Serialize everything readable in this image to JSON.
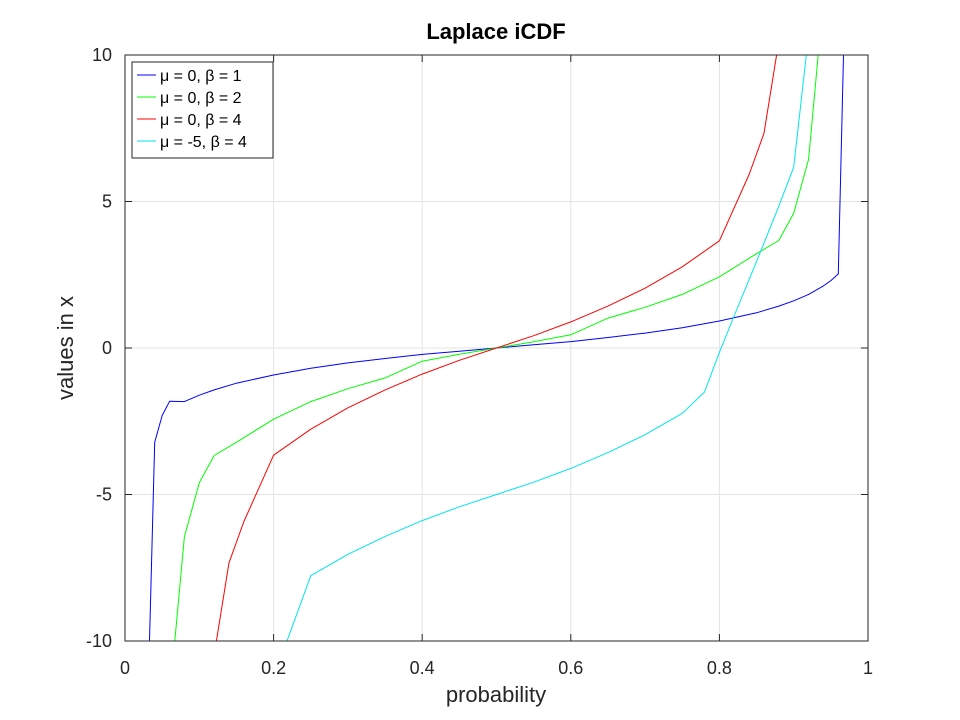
{
  "chart_data": {
    "type": "line",
    "title": "Laplace iCDF",
    "xlabel": "probability",
    "ylabel": "values in x",
    "xlim": [
      0,
      1
    ],
    "ylim": [
      -10,
      10
    ],
    "xticks": [
      0,
      0.2,
      0.4,
      0.6,
      0.8,
      1
    ],
    "yticks": [
      -10,
      -5,
      0,
      5,
      10
    ],
    "xtick_labels": [
      "0",
      "0.2",
      "0.4",
      "0.6",
      "0.8",
      "1"
    ],
    "ytick_labels": [
      "-10",
      "-5",
      "0",
      "5",
      "10"
    ],
    "grid": true,
    "legend_position": "top-left",
    "series": [
      {
        "name": "μ = 0, β = 1",
        "color": "#0000ff",
        "x": [
          0.033,
          0.04,
          0.05,
          0.06,
          0.08,
          0.1,
          0.12,
          0.15,
          0.2,
          0.25,
          0.3,
          0.35,
          0.4,
          0.45,
          0.5,
          0.55,
          0.6,
          0.65,
          0.7,
          0.75,
          0.8,
          0.85,
          0.88,
          0.9,
          0.92,
          0.94,
          0.95,
          0.96,
          0.967
        ],
        "y": [
          -10,
          -3.22,
          -2.3,
          -1.82,
          -1.83,
          -1.61,
          -1.43,
          -1.2,
          -0.92,
          -0.69,
          -0.51,
          -0.36,
          -0.22,
          -0.11,
          0,
          0.11,
          0.22,
          0.36,
          0.51,
          0.69,
          0.92,
          1.2,
          1.43,
          1.61,
          1.83,
          2.12,
          2.3,
          2.53,
          10
        ]
      },
      {
        "name": "μ = 0, β = 2",
        "color": "#00ff00",
        "x": [
          0.067,
          0.08,
          0.1,
          0.12,
          0.15,
          0.2,
          0.25,
          0.3,
          0.35,
          0.4,
          0.45,
          0.5,
          0.55,
          0.6,
          0.65,
          0.7,
          0.75,
          0.8,
          0.85,
          0.88,
          0.9,
          0.92,
          0.933
        ],
        "y": [
          -10,
          -6.44,
          -4.6,
          -3.67,
          -3.22,
          -2.43,
          -1.83,
          -1.39,
          -1.02,
          -0.45,
          -0.21,
          0,
          0.21,
          0.45,
          1.02,
          1.39,
          1.83,
          2.43,
          3.22,
          3.67,
          4.6,
          6.44,
          10
        ]
      },
      {
        "name": "μ = 0, β = 4",
        "color": "#ff0000",
        "x": [
          0.123,
          0.14,
          0.16,
          0.2,
          0.25,
          0.3,
          0.35,
          0.4,
          0.45,
          0.5,
          0.55,
          0.6,
          0.65,
          0.7,
          0.75,
          0.8,
          0.84,
          0.86,
          0.877
        ],
        "y": [
          -10,
          -7.33,
          -5.92,
          -3.66,
          -2.77,
          -2.04,
          -1.43,
          -0.89,
          -0.42,
          0,
          0.42,
          0.89,
          1.43,
          2.04,
          2.77,
          3.66,
          5.92,
          7.33,
          10
        ]
      },
      {
        "name": "μ = -5, β = 4",
        "color": "#00e5ee",
        "x": [
          0.218,
          0.25,
          0.3,
          0.35,
          0.4,
          0.45,
          0.5,
          0.55,
          0.6,
          0.65,
          0.7,
          0.75,
          0.78,
          0.8,
          0.82,
          0.84,
          0.86,
          0.88,
          0.9,
          0.917
        ],
        "y": [
          -10,
          -7.77,
          -7.04,
          -6.43,
          -5.89,
          -5.42,
          -5,
          -4.58,
          -4.11,
          -3.57,
          -2.96,
          -2.23,
          -1.5,
          -0.15,
          1.11,
          2.33,
          3.58,
          4.84,
          6.17,
          10
        ]
      }
    ]
  }
}
